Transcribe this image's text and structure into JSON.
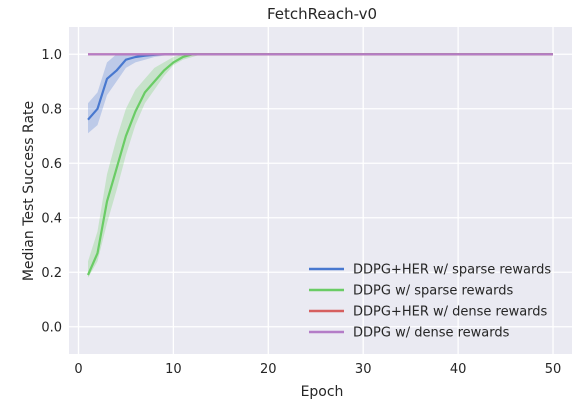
{
  "chart_data": {
    "type": "line",
    "title": "FetchReach-v0",
    "xlabel": "Epoch",
    "ylabel": "Median Test Success Rate",
    "xlim": [
      -1,
      52
    ],
    "ylim": [
      -0.1,
      1.1
    ],
    "xticks": [
      0,
      10,
      20,
      30,
      40,
      50
    ],
    "yticks": [
      0.0,
      0.2,
      0.4,
      0.6,
      0.8,
      1.0
    ],
    "xtick_labels": [
      "0",
      "10",
      "20",
      "30",
      "40",
      "50"
    ],
    "ytick_labels": [
      "0.0",
      "0.2",
      "0.4",
      "0.6",
      "0.8",
      "1.0"
    ],
    "grid": true,
    "legend_position": "bottom-right",
    "series": [
      {
        "name": "DDPG+HER w/ sparse rewards",
        "color": "#4878cf",
        "x": [
          1,
          2,
          3,
          4,
          5,
          6,
          7,
          8,
          9,
          10,
          11,
          12,
          15,
          20,
          30,
          40,
          50
        ],
        "y": [
          0.76,
          0.8,
          0.91,
          0.94,
          0.98,
          0.99,
          0.995,
          0.998,
          1.0,
          1.0,
          1.0,
          1.0,
          1.0,
          1.0,
          1.0,
          1.0,
          1.0
        ],
        "lower": [
          0.71,
          0.74,
          0.85,
          0.9,
          0.95,
          0.97,
          0.98,
          0.99,
          0.995,
          1.0,
          1.0,
          1.0,
          1.0,
          1.0,
          1.0,
          1.0,
          1.0
        ],
        "upper": [
          0.82,
          0.86,
          0.97,
          1.0,
          1.0,
          1.0,
          1.0,
          1.0,
          1.0,
          1.0,
          1.0,
          1.0,
          1.0,
          1.0,
          1.0,
          1.0,
          1.0
        ]
      },
      {
        "name": "DDPG w/ sparse rewards",
        "color": "#6acc65",
        "x": [
          1,
          2,
          3,
          4,
          5,
          6,
          7,
          8,
          9,
          10,
          11,
          12,
          13,
          15,
          20,
          30,
          40,
          50
        ],
        "y": [
          0.19,
          0.27,
          0.46,
          0.58,
          0.7,
          0.79,
          0.86,
          0.9,
          0.94,
          0.97,
          0.99,
          1.0,
          1.0,
          1.0,
          1.0,
          1.0,
          1.0,
          1.0
        ],
        "lower": [
          0.18,
          0.24,
          0.38,
          0.5,
          0.63,
          0.74,
          0.82,
          0.87,
          0.92,
          0.96,
          0.98,
          0.99,
          1.0,
          1.0,
          1.0,
          1.0,
          1.0,
          1.0
        ],
        "upper": [
          0.24,
          0.35,
          0.56,
          0.69,
          0.8,
          0.87,
          0.91,
          0.95,
          0.97,
          0.99,
          1.0,
          1.0,
          1.0,
          1.0,
          1.0,
          1.0,
          1.0,
          1.0
        ]
      },
      {
        "name": "DDPG+HER w/ dense rewards",
        "color": "#d65f5f",
        "x": [
          1,
          10,
          20,
          30,
          40,
          50
        ],
        "y": [
          1.0,
          1.0,
          1.0,
          1.0,
          1.0,
          1.0
        ]
      },
      {
        "name": "DDPG w/ dense rewards",
        "color": "#b47cc7",
        "x": [
          1,
          10,
          20,
          30,
          40,
          50
        ],
        "y": [
          1.0,
          1.0,
          1.0,
          1.0,
          1.0,
          1.0
        ]
      }
    ]
  }
}
